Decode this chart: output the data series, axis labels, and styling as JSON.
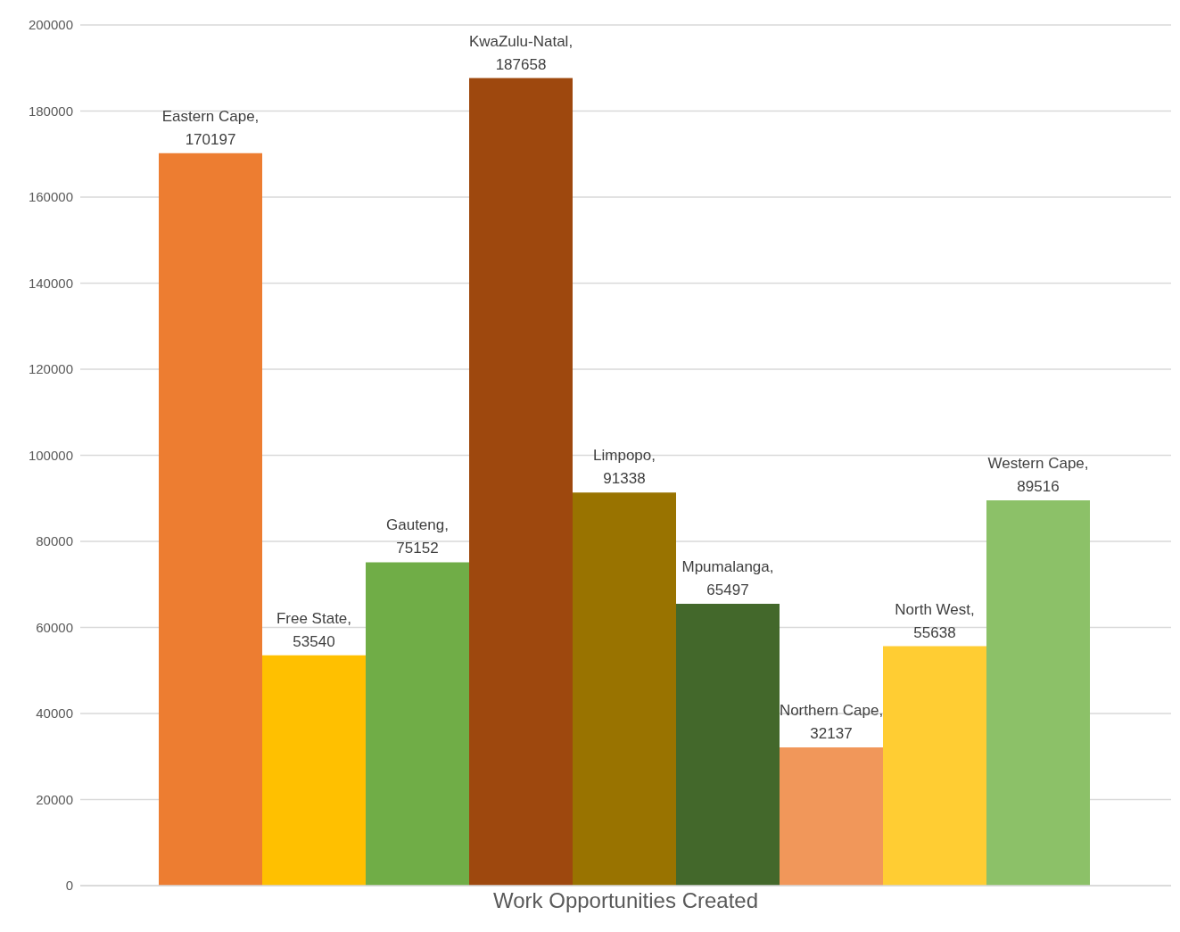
{
  "chart_data": {
    "type": "bar",
    "categories": [
      "Work Opportunities Created"
    ],
    "series": [
      {
        "color": "#ed7d31",
        "values": [
          170197
        ],
        "value_labels": [
          "Eastern Cape, 170197"
        ]
      },
      {
        "color": "#ffc000",
        "values": [
          53540
        ],
        "value_labels": [
          "Free State, 53540"
        ]
      },
      {
        "color": "#70ad47",
        "values": [
          75152
        ],
        "value_labels": [
          "Gauteng, 75152"
        ]
      },
      {
        "color": "#9e480e",
        "values": [
          187658
        ],
        "value_labels": [
          "KwaZulu-Natal, 187658"
        ]
      },
      {
        "color": "#997300",
        "values": [
          91338
        ],
        "value_labels": [
          "Limpopo, 91338"
        ]
      },
      {
        "color": "#43682b",
        "values": [
          65497
        ],
        "value_labels": [
          "Mpumalanga, 65497"
        ]
      },
      {
        "color": "#f1975a",
        "values": [
          32137
        ],
        "value_labels": [
          "Northern Cape, 32137"
        ]
      },
      {
        "color": "#ffcd33",
        "values": [
          55638
        ],
        "value_labels": [
          "North West, 55638"
        ]
      },
      {
        "color": "#8cc168",
        "values": [
          89516
        ],
        "value_labels": [
          "Western Cape, 89516"
        ]
      }
    ],
    "ylim": [
      0,
      200000
    ],
    "yticks": [
      0,
      20000,
      40000,
      60000,
      80000,
      100000,
      120000,
      140000,
      160000,
      180000,
      200000
    ],
    "grid": "y",
    "legend": false
  }
}
